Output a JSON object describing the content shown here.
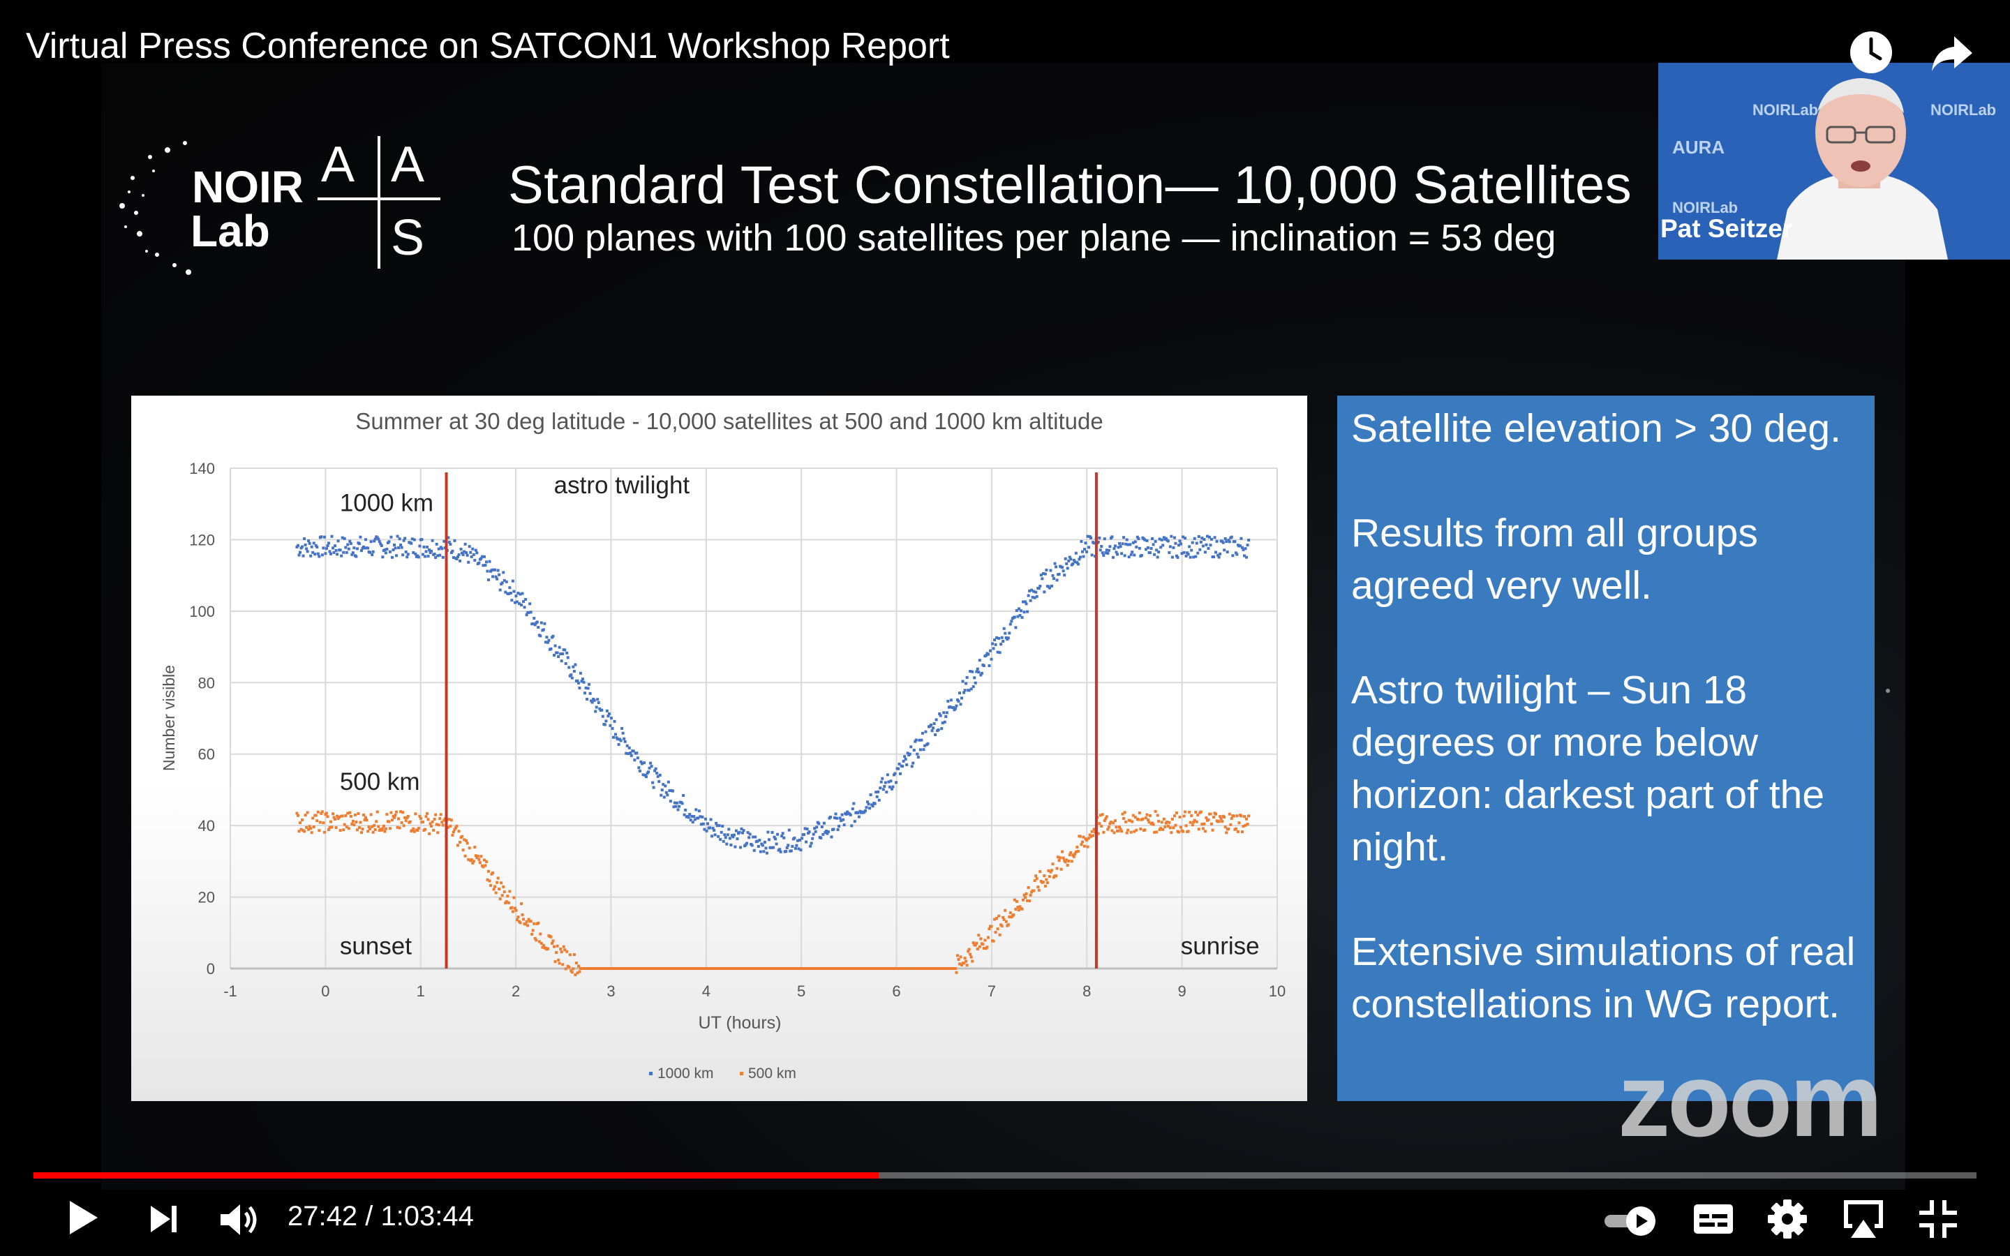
{
  "video": {
    "title": "Virtual Press Conference on SATCON1 Workshop Report",
    "current_time": "27:42",
    "duration": "1:03:44",
    "time_display": "27:42 / 1:03:44",
    "progress": 0.435
  },
  "slide": {
    "title": "Standard Test Constellation— 10,000 Satellites",
    "subtitle": "100 planes with 100 satellites per plane — inclination = 53 deg",
    "logo_noirlab": [
      "NOIR",
      "Lab"
    ],
    "logo_aas": [
      "A",
      "A",
      "S"
    ]
  },
  "info_box": {
    "paragraphs": [
      "Satellite elevation > 30 deg.",
      "Results from all groups agreed very well.",
      "Astro twilight – Sun 18 degrees or more below horizon: darkest part of the night.",
      "Extensive simulations of real constellations in WG report."
    ]
  },
  "camera": {
    "speaker_name": "Pat Seitzer",
    "background_logos": [
      "NOIRLab",
      "NOIRLab",
      "AURA",
      "NOIRLab"
    ]
  },
  "watermark": "zoom",
  "chart_data": {
    "type": "scatter",
    "title": "Summer at 30 deg latitude - 10,000 satellites at 500 and 1000 km altitude",
    "xlabel": "UT (hours)",
    "ylabel": "Number visible",
    "xlim": [
      -1,
      10
    ],
    "ylim": [
      0,
      140
    ],
    "x_ticks": [
      "-1",
      "0",
      "1",
      "2",
      "3",
      "4",
      "5",
      "6",
      "7",
      "8",
      "9",
      "10"
    ],
    "y_ticks": [
      "0",
      "20",
      "40",
      "60",
      "80",
      "100",
      "120",
      "140"
    ],
    "grid": true,
    "legend": "bottom",
    "legend_entries": [
      "1000 km",
      "500 km"
    ],
    "series": [
      {
        "name": "1000 km",
        "color": "#4472c4",
        "x": [
          -0.3,
          0,
          0.5,
          1.0,
          1.3,
          1.5,
          2.0,
          2.5,
          3.0,
          3.5,
          4.0,
          4.5,
          5.0,
          5.5,
          6.0,
          6.5,
          7.0,
          7.5,
          8.0,
          8.5,
          9.0,
          9.7
        ],
        "y": [
          118,
          118,
          118,
          118,
          118,
          116,
          105,
          87,
          68,
          52,
          40,
          35,
          36,
          42,
          54,
          71,
          88,
          107,
          118,
          118,
          118,
          118
        ]
      },
      {
        "name": "500 km",
        "color": "#ed7d31",
        "x": [
          -0.3,
          0,
          0.5,
          1.0,
          1.3,
          1.6,
          2.0,
          2.4,
          2.7,
          3.0,
          4.0,
          5.0,
          6.0,
          6.6,
          7.0,
          7.5,
          8.0,
          8.1,
          8.5,
          9.0,
          9.7
        ],
        "y": [
          41,
          41,
          41,
          41,
          40,
          30,
          17,
          5,
          0,
          0,
          0,
          0,
          0,
          0,
          10,
          24,
          36,
          40,
          41,
          41,
          41
        ]
      }
    ],
    "vlines": [
      {
        "x": 1.27,
        "color": "#c0392b"
      },
      {
        "x": 8.1,
        "color": "#c0392b"
      }
    ],
    "annotations": [
      {
        "text": "1000 km",
        "x": 0.15,
        "y": 128
      },
      {
        "text": "500 km",
        "x": 0.15,
        "y": 50
      },
      {
        "text": "astro twilight",
        "x": 2.4,
        "y": 133
      },
      {
        "text": "sunset",
        "x": 0.15,
        "y": 4
      },
      {
        "text": "sunrise",
        "x": 9.4,
        "y": 4
      }
    ]
  },
  "controls": {
    "play": "play-icon",
    "next": "next-icon",
    "volume": "volume-icon",
    "autoplay": "autoplay-toggle-icon",
    "captions": "captions-icon",
    "settings": "gear-icon",
    "airplay": "airplay-icon",
    "exit_fullscreen": "exit-fullscreen-icon",
    "watch_later": "clock-icon",
    "share": "share-icon"
  }
}
